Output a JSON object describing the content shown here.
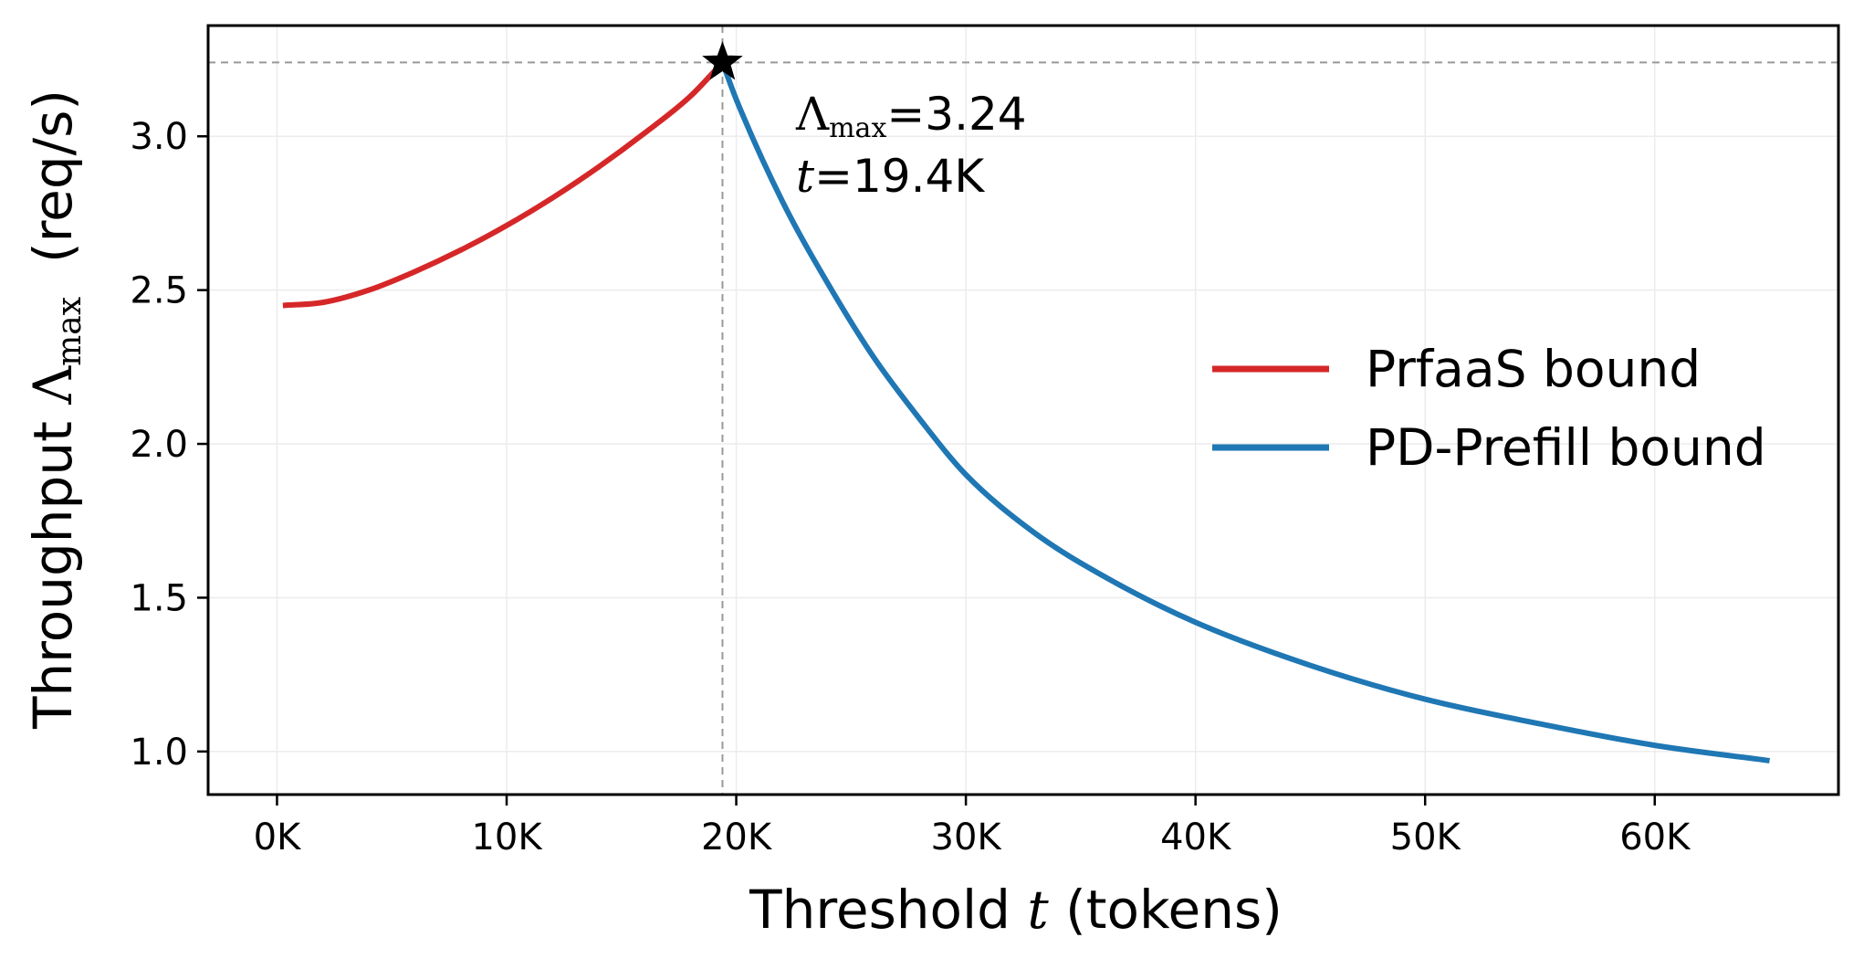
{
  "chart_data": {
    "type": "line",
    "xlabel_prefix": "Threshold ",
    "xlabel_var": "t",
    "xlabel_suffix": " (tokens)",
    "ylabel_prefix": "Throughput ",
    "ylabel_symbol": "Λ",
    "ylabel_sub": "max",
    "ylabel_suffix": "  (req/s)",
    "xlim": [
      -3000,
      68000
    ],
    "ylim": [
      0.86,
      3.36
    ],
    "xticks": [
      0,
      10000,
      20000,
      30000,
      40000,
      50000,
      60000
    ],
    "xtick_labels": [
      "0K",
      "10K",
      "20K",
      "30K",
      "40K",
      "50K",
      "60K"
    ],
    "yticks": [
      1.0,
      1.5,
      2.0,
      2.5,
      3.0
    ],
    "ytick_labels": [
      "1.0",
      "1.5",
      "2.0",
      "2.5",
      "3.0"
    ],
    "grid": true,
    "legend_position": "center-right",
    "series": [
      {
        "name": "PrfaaS bound",
        "color": "#d62728",
        "x": [
          256,
          2000,
          4000,
          6000,
          8000,
          10000,
          12000,
          14000,
          16000,
          18000,
          19400
        ],
        "y": [
          2.45,
          2.46,
          2.5,
          2.56,
          2.63,
          2.71,
          2.8,
          2.9,
          3.01,
          3.13,
          3.24
        ]
      },
      {
        "name": "PD-Prefill bound",
        "color": "#1f77b4",
        "x": [
          19400,
          20000,
          22000,
          24000,
          26000,
          28000,
          30000,
          33000,
          36000,
          40000,
          45000,
          50000,
          55000,
          60000,
          65000
        ],
        "y": [
          3.24,
          3.12,
          2.79,
          2.52,
          2.28,
          2.08,
          1.9,
          1.71,
          1.57,
          1.42,
          1.28,
          1.17,
          1.09,
          1.02,
          0.97
        ]
      }
    ],
    "optimum": {
      "x": 19400,
      "y": 3.24,
      "label_symbol": "Λ",
      "label_sub": "max",
      "label_value": "=3.24",
      "label_var": "t",
      "label_t_value": "=19.4K"
    },
    "colors": {
      "reference_lines": "#999999",
      "grid": "#ececec",
      "marker": "#000000"
    }
  }
}
